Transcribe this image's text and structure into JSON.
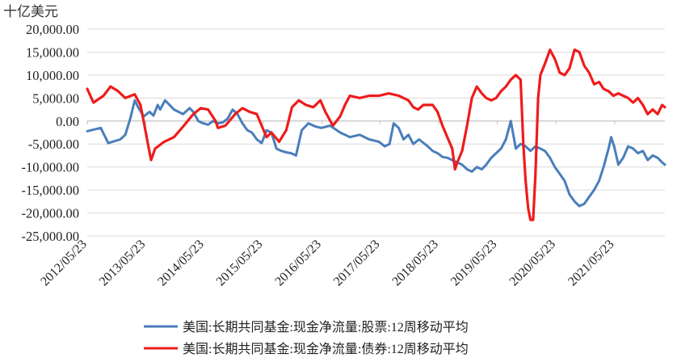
{
  "chart_data": {
    "type": "line",
    "unit_label": "十亿美元",
    "title": "",
    "xlabel": "",
    "ylabel": "",
    "ylim": [
      -25000,
      20000
    ],
    "yticks": [
      20000,
      15000,
      10000,
      5000,
      0,
      -5000,
      -10000,
      -15000,
      -20000,
      -25000
    ],
    "ytick_labels": [
      "20,000.00",
      "15,000.00",
      "10,000.00",
      "5,000.00",
      "0.00",
      "-5,000.00",
      "-10,000.00",
      "-15,000.00",
      "-20,000.00",
      "-25,000.00"
    ],
    "xlim": [
      "2012-05-23",
      "2022-04-01"
    ],
    "xticks": [
      "2012-05-23",
      "2013-05-23",
      "2014-05-23",
      "2015-05-23",
      "2016-05-23",
      "2017-05-23",
      "2018-05-23",
      "2019-05-23",
      "2020-05-23",
      "2021-05-23"
    ],
    "xtick_labels": [
      "2012/05/23",
      "2013/05/23",
      "2014/05/23",
      "2015/05/23",
      "2016/05/23",
      "2017/05/23",
      "2018/05/23",
      "2019/05/23",
      "2020/05/23",
      "2021/05/23"
    ],
    "grid": "horizontal",
    "legend_position": "bottom",
    "series": [
      {
        "name": "美国:长期共同基金:现金净流量:股票:12周移动平均",
        "color": "#4a7ebb",
        "points": [
          [
            "2012-05-23",
            -2200
          ],
          [
            "2012-08-15",
            -1500
          ],
          [
            "2012-10-01",
            -4800
          ],
          [
            "2012-12-15",
            -4000
          ],
          [
            "2013-01-15",
            -3000
          ],
          [
            "2013-02-15",
            500
          ],
          [
            "2013-03-15",
            4500
          ],
          [
            "2013-04-05",
            3000
          ],
          [
            "2013-05-10",
            1000
          ],
          [
            "2013-06-15",
            2000
          ],
          [
            "2013-07-10",
            1200
          ],
          [
            "2013-08-05",
            3500
          ],
          [
            "2013-08-20",
            2500
          ],
          [
            "2013-09-20",
            4500
          ],
          [
            "2013-11-15",
            2500
          ],
          [
            "2014-01-10",
            1500
          ],
          [
            "2014-02-20",
            2800
          ],
          [
            "2014-03-15",
            2000
          ],
          [
            "2014-04-15",
            0
          ],
          [
            "2014-05-15",
            -500
          ],
          [
            "2014-06-15",
            -800
          ],
          [
            "2014-07-15",
            0
          ],
          [
            "2014-08-15",
            -500
          ],
          [
            "2014-09-15",
            -300
          ],
          [
            "2014-10-15",
            500
          ],
          [
            "2014-11-15",
            2500
          ],
          [
            "2014-12-15",
            1500
          ],
          [
            "2015-01-15",
            -500
          ],
          [
            "2015-02-15",
            -2000
          ],
          [
            "2015-03-15",
            -2500
          ],
          [
            "2015-04-15",
            -4000
          ],
          [
            "2015-05-15",
            -4800
          ],
          [
            "2015-06-15",
            -2000
          ],
          [
            "2015-07-15",
            -2500
          ],
          [
            "2015-08-15",
            -6000
          ],
          [
            "2015-09-15",
            -6500
          ],
          [
            "2015-10-15",
            -6800
          ],
          [
            "2015-11-15",
            -7000
          ],
          [
            "2015-12-15",
            -7500
          ],
          [
            "2016-01-20",
            -2000
          ],
          [
            "2016-03-01",
            -500
          ],
          [
            "2016-04-15",
            -1200
          ],
          [
            "2016-05-20",
            -1500
          ],
          [
            "2016-07-15",
            -1000
          ],
          [
            "2016-09-15",
            -2500
          ],
          [
            "2016-11-15",
            -3500
          ],
          [
            "2017-01-15",
            -3000
          ],
          [
            "2017-03-15",
            -4000
          ],
          [
            "2017-05-15",
            -4500
          ],
          [
            "2017-06-20",
            -5500
          ],
          [
            "2017-07-20",
            -5000
          ],
          [
            "2017-08-15",
            -500
          ],
          [
            "2017-09-15",
            -1500
          ],
          [
            "2017-10-15",
            -4000
          ],
          [
            "2017-11-15",
            -3000
          ],
          [
            "2017-12-15",
            -5000
          ],
          [
            "2018-01-20",
            -4000
          ],
          [
            "2018-03-15",
            -5500
          ],
          [
            "2018-04-15",
            -6500
          ],
          [
            "2018-05-15",
            -7000
          ],
          [
            "2018-06-15",
            -7800
          ],
          [
            "2018-07-15",
            -8000
          ],
          [
            "2018-08-15",
            -8500
          ],
          [
            "2018-09-15",
            -9000
          ],
          [
            "2018-10-15",
            -9500
          ],
          [
            "2018-11-15",
            -10500
          ],
          [
            "2018-12-15",
            -11000
          ],
          [
            "2019-01-15",
            -10000
          ],
          [
            "2019-02-15",
            -10500
          ],
          [
            "2019-03-15",
            -9500
          ],
          [
            "2019-04-15",
            -8000
          ],
          [
            "2019-05-15",
            -7000
          ],
          [
            "2019-06-15",
            -6000
          ],
          [
            "2019-07-15",
            -4000
          ],
          [
            "2019-08-15",
            0
          ],
          [
            "2019-09-15",
            -6000
          ],
          [
            "2019-10-15",
            -5000
          ],
          [
            "2019-11-15",
            -5500
          ],
          [
            "2019-12-15",
            -6500
          ],
          [
            "2020-01-15",
            -5500
          ],
          [
            "2020-02-15",
            -6000
          ],
          [
            "2020-03-15",
            -6500
          ],
          [
            "2020-04-15",
            -8000
          ],
          [
            "2020-05-15",
            -10000
          ],
          [
            "2020-06-15",
            -11500
          ],
          [
            "2020-07-15",
            -13000
          ],
          [
            "2020-08-15",
            -16000
          ],
          [
            "2020-09-15",
            -17500
          ],
          [
            "2020-10-15",
            -18500
          ],
          [
            "2020-11-15",
            -18000
          ],
          [
            "2020-12-15",
            -16500
          ],
          [
            "2021-01-15",
            -15000
          ],
          [
            "2021-02-15",
            -13000
          ],
          [
            "2021-03-15",
            -10000
          ],
          [
            "2021-04-15",
            -6000
          ],
          [
            "2021-05-01",
            -3500
          ],
          [
            "2021-05-20",
            -5500
          ],
          [
            "2021-06-15",
            -9500
          ],
          [
            "2021-07-15",
            -8000
          ],
          [
            "2021-08-15",
            -5500
          ],
          [
            "2021-09-15",
            -6000
          ],
          [
            "2021-10-15",
            -7000
          ],
          [
            "2021-11-15",
            -6500
          ],
          [
            "2021-12-15",
            -8500
          ],
          [
            "2022-01-15",
            -7500
          ],
          [
            "2022-02-15",
            -8000
          ],
          [
            "2022-03-15",
            -9000
          ],
          [
            "2022-04-01",
            -9500
          ]
        ]
      },
      {
        "name": "美国:长期共同基金:现金净流量:债券:12周移动平均",
        "color": "#ee1c1c",
        "points": [
          [
            "2012-05-23",
            7000
          ],
          [
            "2012-07-01",
            4000
          ],
          [
            "2012-09-01",
            5500
          ],
          [
            "2012-10-15",
            7500
          ],
          [
            "2012-12-01",
            6500
          ],
          [
            "2013-01-15",
            5000
          ],
          [
            "2013-03-15",
            5800
          ],
          [
            "2013-04-20",
            3500
          ],
          [
            "2013-05-15",
            -1000
          ],
          [
            "2013-06-05",
            -5000
          ],
          [
            "2013-06-25",
            -8500
          ],
          [
            "2013-07-20",
            -6000
          ],
          [
            "2013-09-15",
            -4500
          ],
          [
            "2013-11-15",
            -3500
          ],
          [
            "2014-01-15",
            -1000
          ],
          [
            "2014-03-15",
            1500
          ],
          [
            "2014-05-01",
            2800
          ],
          [
            "2014-06-15",
            2500
          ],
          [
            "2014-08-01",
            0
          ],
          [
            "2014-08-15",
            -1500
          ],
          [
            "2014-10-01",
            -1000
          ],
          [
            "2014-12-01",
            1500
          ],
          [
            "2015-01-15",
            2800
          ],
          [
            "2015-03-01",
            2000
          ],
          [
            "2015-04-15",
            1500
          ],
          [
            "2015-05-15",
            -1000
          ],
          [
            "2015-06-15",
            -3500
          ],
          [
            "2015-07-15",
            -2500
          ],
          [
            "2015-09-01",
            -4500
          ],
          [
            "2015-10-15",
            -2000
          ],
          [
            "2015-11-20",
            3000
          ],
          [
            "2016-01-01",
            4500
          ],
          [
            "2016-02-15",
            3500
          ],
          [
            "2016-04-01",
            3000
          ],
          [
            "2016-05-15",
            4500
          ],
          [
            "2016-06-15",
            2000
          ],
          [
            "2016-08-01",
            -1000
          ],
          [
            "2016-09-15",
            1000
          ],
          [
            "2016-10-15",
            3500
          ],
          [
            "2016-11-15",
            5500
          ],
          [
            "2017-01-15",
            5000
          ],
          [
            "2017-03-15",
            5500
          ],
          [
            "2017-05-15",
            5500
          ],
          [
            "2017-07-15",
            6000
          ],
          [
            "2017-09-15",
            5500
          ],
          [
            "2017-11-15",
            4500
          ],
          [
            "2017-12-15",
            3000
          ],
          [
            "2018-01-15",
            2500
          ],
          [
            "2018-02-15",
            3500
          ],
          [
            "2018-04-15",
            3500
          ],
          [
            "2018-05-15",
            2000
          ],
          [
            "2018-06-15",
            -1000
          ],
          [
            "2018-07-15",
            -3500
          ],
          [
            "2018-08-15",
            -6000
          ],
          [
            "2018-09-01",
            -10500
          ],
          [
            "2018-09-15",
            -9000
          ],
          [
            "2018-10-15",
            -6500
          ],
          [
            "2018-11-15",
            -1000
          ],
          [
            "2018-12-15",
            5000
          ],
          [
            "2019-01-15",
            7500
          ],
          [
            "2019-02-15",
            6000
          ],
          [
            "2019-03-15",
            5000
          ],
          [
            "2019-04-15",
            4500
          ],
          [
            "2019-05-15",
            5000
          ],
          [
            "2019-06-15",
            6500
          ],
          [
            "2019-07-15",
            7500
          ],
          [
            "2019-08-15",
            9000
          ],
          [
            "2019-09-15",
            10000
          ],
          [
            "2019-10-15",
            9000
          ],
          [
            "2019-11-01",
            -5000
          ],
          [
            "2019-11-15",
            -13000
          ],
          [
            "2019-12-01",
            -19000
          ],
          [
            "2019-12-15",
            -21500
          ],
          [
            "2020-01-01",
            -21500
          ],
          [
            "2020-01-15",
            -12000
          ],
          [
            "2020-02-01",
            5000
          ],
          [
            "2020-02-15",
            10000
          ],
          [
            "2020-03-15",
            12500
          ],
          [
            "2020-04-15",
            15500
          ],
          [
            "2020-05-15",
            13500
          ],
          [
            "2020-06-15",
            10500
          ],
          [
            "2020-07-15",
            10000
          ],
          [
            "2020-08-15",
            11500
          ],
          [
            "2020-09-15",
            15500
          ],
          [
            "2020-10-15",
            15000
          ],
          [
            "2020-11-15",
            12000
          ],
          [
            "2020-12-15",
            10500
          ],
          [
            "2021-01-15",
            8000
          ],
          [
            "2021-02-15",
            8500
          ],
          [
            "2021-03-15",
            7000
          ],
          [
            "2021-04-15",
            6500
          ],
          [
            "2021-05-15",
            5500
          ],
          [
            "2021-06-15",
            6000
          ],
          [
            "2021-07-15",
            5500
          ],
          [
            "2021-08-15",
            5000
          ],
          [
            "2021-09-15",
            4000
          ],
          [
            "2021-10-15",
            5000
          ],
          [
            "2021-11-15",
            3500
          ],
          [
            "2021-12-15",
            1500
          ],
          [
            "2022-01-15",
            2500
          ],
          [
            "2022-02-15",
            1500
          ],
          [
            "2022-03-15",
            3500
          ],
          [
            "2022-04-01",
            3000
          ]
        ]
      }
    ]
  }
}
